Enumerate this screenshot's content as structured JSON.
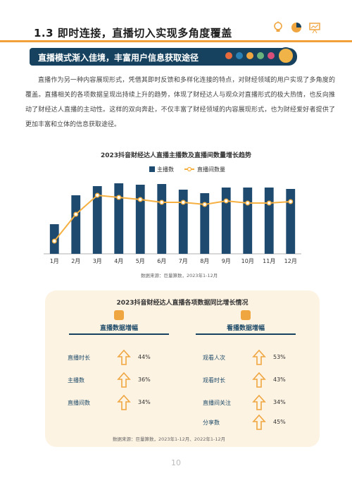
{
  "header": {
    "section_title": "1.3  即时连接，直播切入实现多角度覆盖"
  },
  "banner": {
    "text": "直播模式渐入佳境，丰富用户信息获取途径",
    "dot_colors": [
      "#e86a3c",
      "#2a7fb4",
      "#f0a640",
      "#6bb37c",
      "#d94f7a"
    ]
  },
  "paragraph": "直播作为另一种内容展现形式，凭借其即时反馈和多样化连接的特点，对财经领域的用户实现了多角度的覆盖。直播相关的各项数据呈现出持续上升的趋势，体现了财经达人与观众对直播形式的极大热情，也反向推动了财经达人直播的主动性。这样的双向奔赴，不仅丰富了财经领域的内容展现形式，也为财经爱好者提供了更加丰富和立体的信息获取途径。",
  "chart_data": {
    "type": "bar",
    "title": "2023抖音财经达人直播主播数及直播间数量增长趋势",
    "categories": [
      "1月",
      "2月",
      "3月",
      "4月",
      "5月",
      "6月",
      "7月",
      "8月",
      "9月",
      "10月",
      "11月",
      "12月"
    ],
    "series": [
      {
        "name": "主播数",
        "type": "bar",
        "color": "#1d4a6e",
        "values": [
          42,
          83,
          96,
          100,
          98,
          99,
          91,
          86,
          94,
          94,
          94,
          92
        ]
      },
      {
        "name": "直播间数量",
        "type": "line",
        "color": "#f5b041",
        "values": [
          18,
          56,
          83,
          80,
          77,
          73,
          73,
          70,
          75,
          72,
          72,
          74
        ]
      }
    ],
    "ylim": [
      0,
      110
    ],
    "grid": false,
    "legend": "top-center",
    "source": "数据来源：巨量算数，2023年1-12月"
  },
  "card": {
    "title": "2023抖音财经达人直播各项数据同比增长情况",
    "left_group": {
      "label": "直播数据增幅",
      "icon": "phone-icon",
      "items": [
        {
          "label": "直播时长",
          "value": "44%"
        },
        {
          "label": "主播数",
          "value": "36%"
        },
        {
          "label": "直播间数",
          "value": "34%"
        }
      ]
    },
    "right_group": {
      "label": "看播数据增幅",
      "icon": "tv-icon",
      "items": [
        {
          "label": "观看人次",
          "value": "53%"
        },
        {
          "label": "观看时长",
          "value": "43%"
        },
        {
          "label": "直播间关注",
          "value": "34%"
        },
        {
          "label": "分享数",
          "value": "45%"
        }
      ]
    },
    "source": "数据来源：巨量算数，2023年1-12月、2022年1-12月",
    "accent_color": "#f0a640"
  },
  "page_number": "10"
}
